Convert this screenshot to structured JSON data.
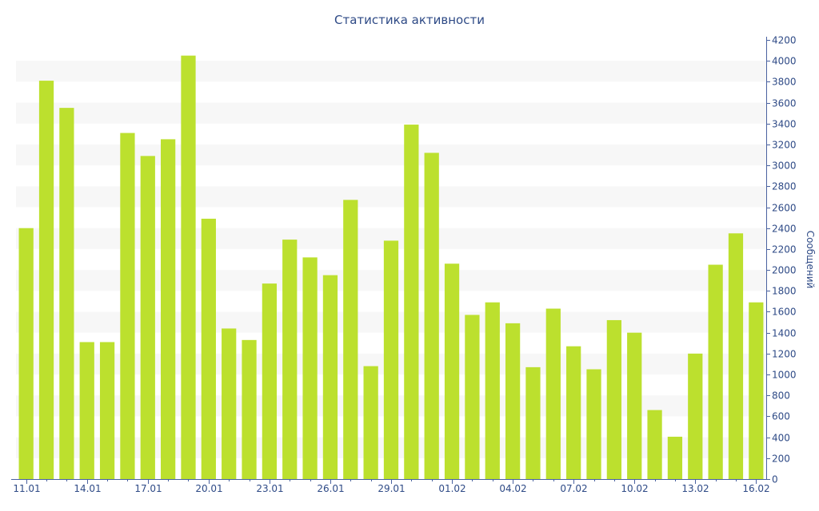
{
  "chart_data": {
    "type": "bar",
    "title": "Статистика активности",
    "ylabel": "Сообщений",
    "xlabel": "",
    "ylim": [
      0,
      4200
    ],
    "y_ticks": [
      0,
      200,
      400,
      600,
      800,
      1000,
      1200,
      1400,
      1600,
      1800,
      2000,
      2200,
      2400,
      2600,
      2800,
      3000,
      3200,
      3400,
      3600,
      3800,
      4000,
      4200
    ],
    "y_axis_side": "right",
    "categories": [
      "11.01",
      "12.01",
      "13.01",
      "14.01",
      "15.01",
      "16.01",
      "17.01",
      "18.01",
      "19.01",
      "20.01",
      "21.01",
      "22.01",
      "23.01",
      "24.01",
      "25.01",
      "26.01",
      "27.01",
      "28.01",
      "29.01",
      "30.01",
      "31.01",
      "01.02",
      "02.02",
      "03.02",
      "04.02",
      "05.02",
      "06.02",
      "07.02",
      "08.02",
      "09.02",
      "10.02",
      "11.02",
      "12.02",
      "13.02",
      "14.02",
      "15.02",
      "16.02"
    ],
    "x_tick_labels": [
      "11.01",
      "14.01",
      "17.01",
      "20.01",
      "23.01",
      "26.01",
      "29.01",
      "01.02",
      "04.02",
      "07.02",
      "10.02",
      "13.02",
      "16.02"
    ],
    "values": [
      2400,
      3810,
      3550,
      1310,
      1310,
      3310,
      3090,
      3250,
      4050,
      2490,
      1440,
      1330,
      1870,
      2290,
      2120,
      1950,
      2670,
      1080,
      2280,
      3390,
      3120,
      2060,
      1570,
      1690,
      1490,
      1070,
      1630,
      1270,
      1050,
      1520,
      1400,
      660,
      405,
      1200,
      2050,
      2350,
      1690
    ],
    "bar_color": "#bce02e",
    "band_color": "#f7f7f7",
    "axis_color": "#4a62a0",
    "text_color": "#2e4a86",
    "grid": "alternating horizontal bands",
    "legend": "none"
  }
}
